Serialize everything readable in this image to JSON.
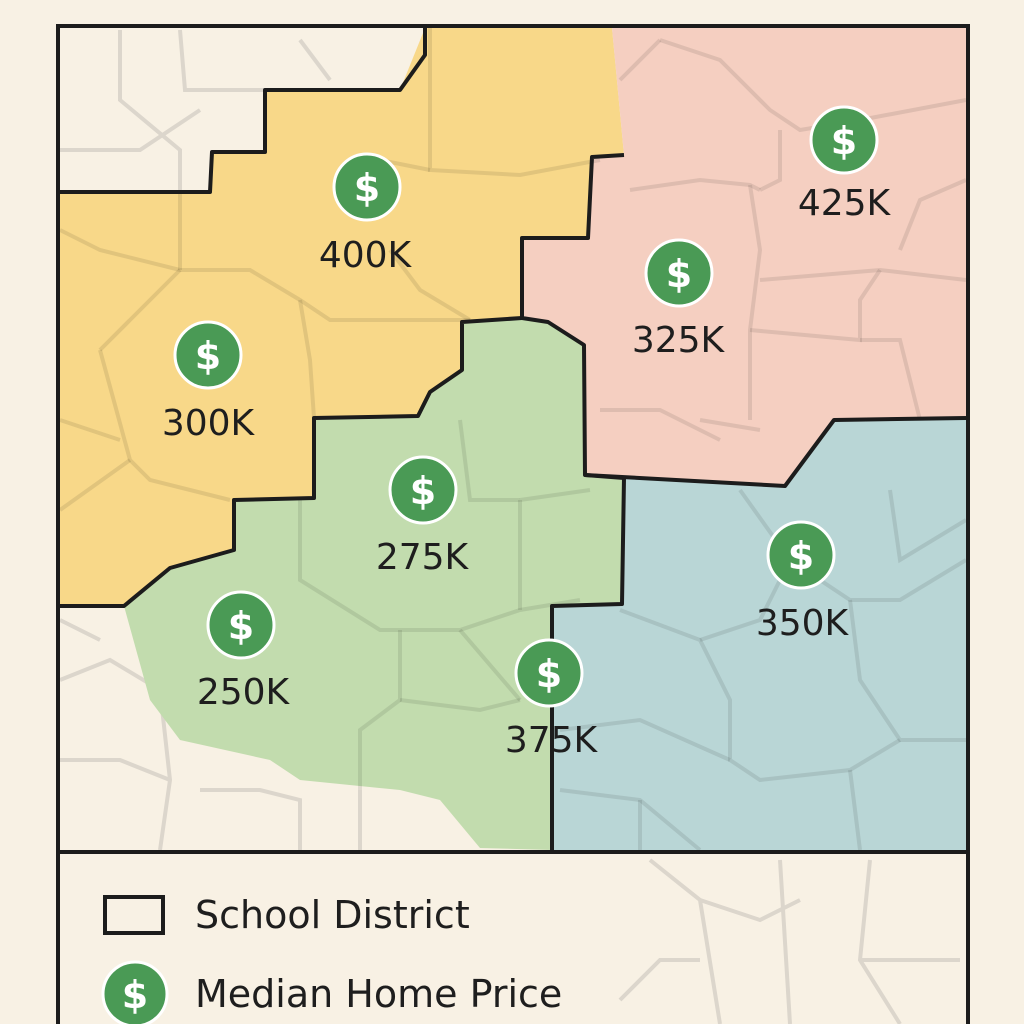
{
  "colors": {
    "background": "#f8f1e4",
    "street_line": "#dcd6cc",
    "district_border": "#1c1c1c",
    "marker_fill": "#4a9a55",
    "districts": {
      "yellow": "#f8d889",
      "pink": "#f5cfc1",
      "green": "#c2dcae",
      "blue": "#b9d6d6"
    }
  },
  "districts": [
    {
      "name": "yellow",
      "color_key": "yellow"
    },
    {
      "name": "pink",
      "color_key": "pink"
    },
    {
      "name": "green",
      "color_key": "green"
    },
    {
      "name": "blue",
      "color_key": "blue"
    }
  ],
  "price_markers": [
    {
      "id": "400k",
      "label": "400K",
      "district": "yellow",
      "icon": "dollar-icon"
    },
    {
      "id": "300k",
      "label": "300K",
      "district": "yellow",
      "icon": "dollar-icon"
    },
    {
      "id": "425k",
      "label": "425K",
      "district": "pink",
      "icon": "dollar-icon"
    },
    {
      "id": "325k",
      "label": "325K",
      "district": "pink",
      "icon": "dollar-icon"
    },
    {
      "id": "275k",
      "label": "275K",
      "district": "green",
      "icon": "dollar-icon"
    },
    {
      "id": "250k",
      "label": "250K",
      "district": "green",
      "icon": "dollar-icon"
    },
    {
      "id": "375k",
      "label": "375K",
      "district": "green",
      "icon": "dollar-icon"
    },
    {
      "id": "350k",
      "label": "350K",
      "district": "blue",
      "icon": "dollar-icon"
    }
  ],
  "legend": {
    "items": [
      {
        "label": "School District",
        "icon": "district-outline-icon"
      },
      {
        "label": "Median Home Price",
        "icon": "dollar-icon"
      }
    ]
  }
}
